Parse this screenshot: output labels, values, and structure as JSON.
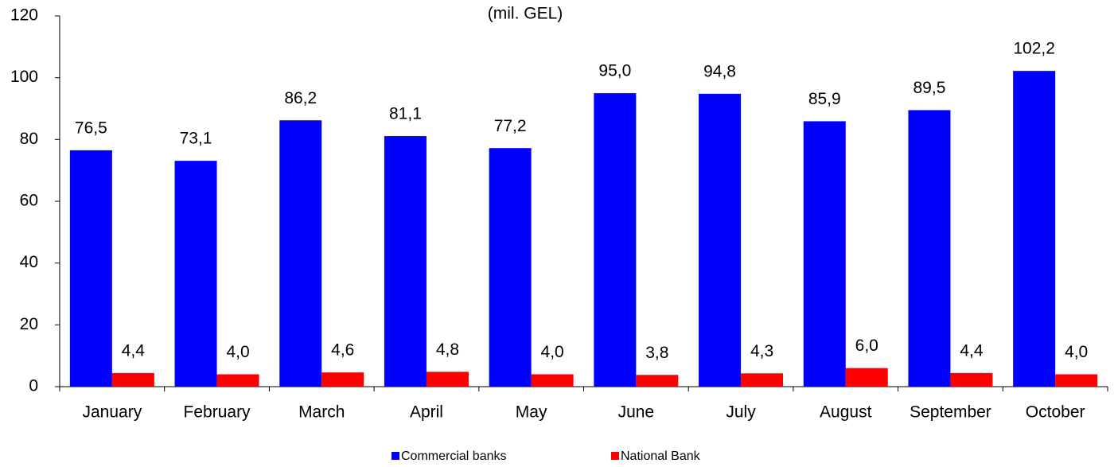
{
  "chart_data": {
    "type": "bar",
    "subtitle": "(mil. GEL)",
    "categories": [
      "January",
      "February",
      "March",
      "April",
      "May",
      "June",
      "July",
      "August",
      "September",
      "October"
    ],
    "series": [
      {
        "name": "Commercial banks",
        "color": "#0000ff",
        "values": [
          76.5,
          73.1,
          86.2,
          81.1,
          77.2,
          95.0,
          94.8,
          85.9,
          89.5,
          102.2
        ],
        "value_labels": [
          "76,5",
          "73,1",
          "86,2",
          "81,1",
          "77,2",
          "95,0",
          "94,8",
          "85,9",
          "89,5",
          "102,2"
        ]
      },
      {
        "name": "National Bank",
        "color": "#ff0000",
        "values": [
          4.4,
          4.0,
          4.6,
          4.8,
          4.0,
          3.8,
          4.3,
          6.0,
          4.4,
          4.0
        ],
        "value_labels": [
          "4,4",
          "4,0",
          "4,6",
          "4,8",
          "4,0",
          "3,8",
          "4,3",
          "6,0",
          "4,4",
          "4,0"
        ]
      }
    ],
    "ylim": [
      0,
      120
    ],
    "yticks": [
      0,
      20,
      40,
      60,
      80,
      100,
      120
    ],
    "grid": false,
    "legend": "bottom"
  }
}
